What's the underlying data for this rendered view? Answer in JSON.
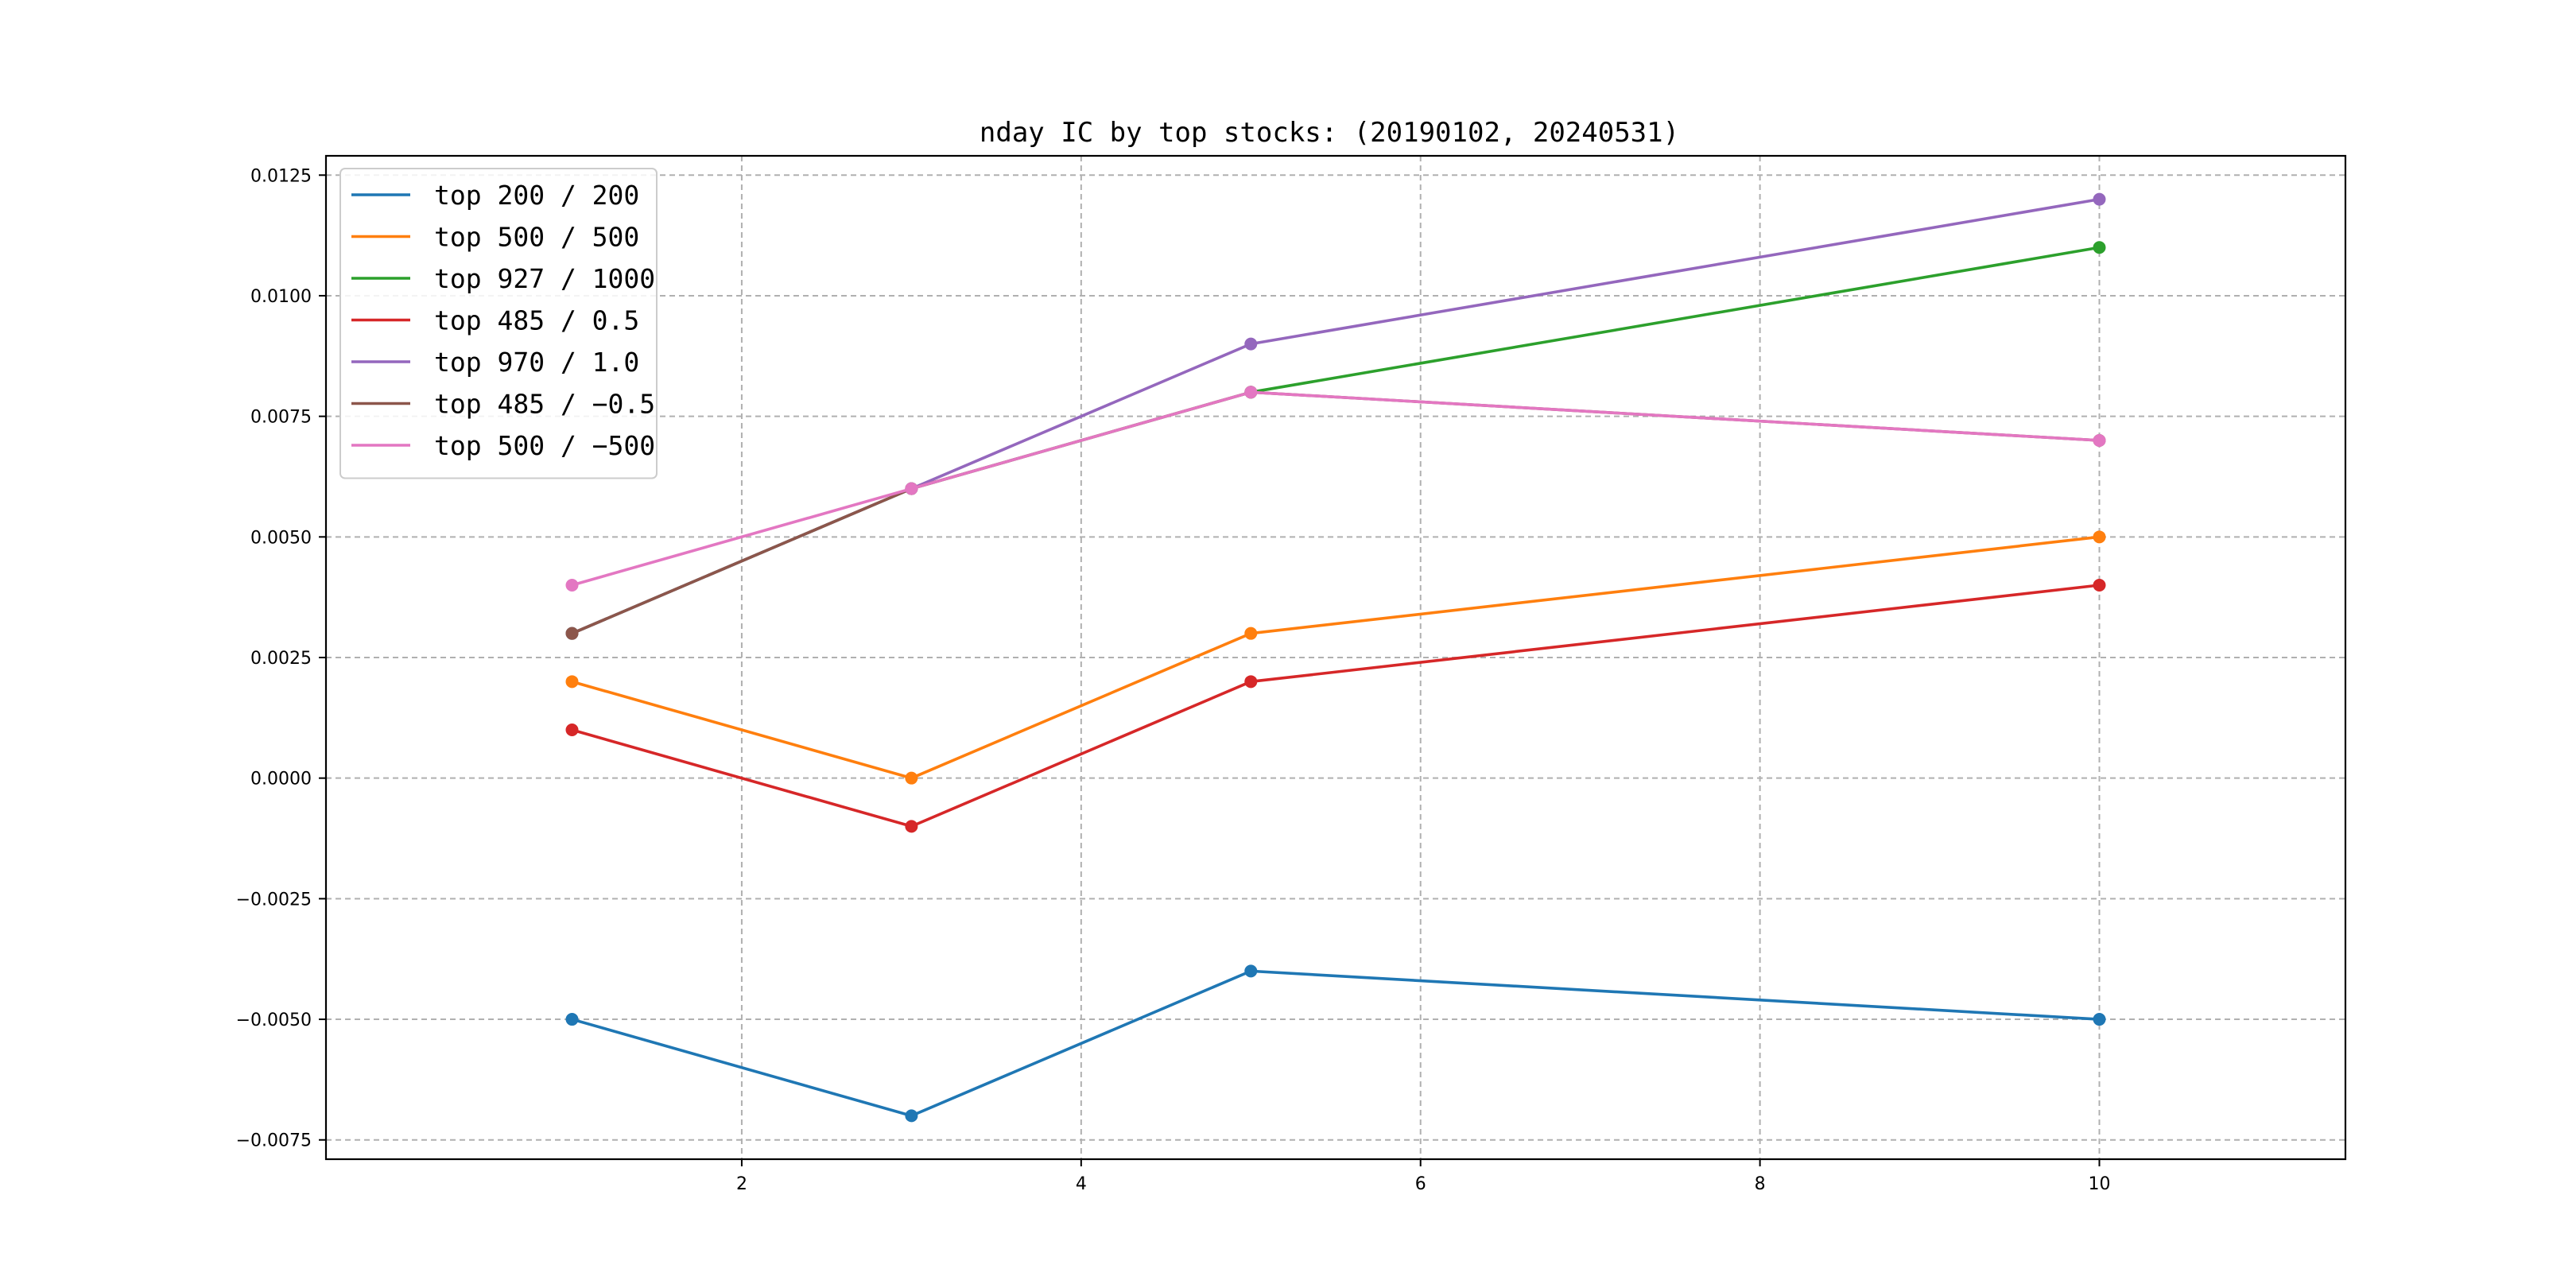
{
  "chart_data": {
    "type": "line",
    "title": "nday IC by top stocks: (20190102, 20240531)",
    "xlabel": "",
    "ylabel": "",
    "x": [
      1,
      3,
      5,
      10
    ],
    "xlim": [
      -0.45,
      11.45
    ],
    "ylim": [
      -0.0079,
      0.0129
    ],
    "xticks": [
      2,
      4,
      6,
      8,
      10
    ],
    "xtick_labels": [
      "2",
      "4",
      "6",
      "8",
      "10"
    ],
    "yticks": [
      -0.0075,
      -0.005,
      -0.0025,
      0.0,
      0.0025,
      0.005,
      0.0075,
      0.01,
      0.0125
    ],
    "ytick_labels": [
      "−0.0075",
      "−0.0050",
      "−0.0025",
      "0.0000",
      "0.0025",
      "0.0050",
      "0.0075",
      "0.0100",
      "0.0125"
    ],
    "grid": true,
    "legend_position": "upper-left",
    "series": [
      {
        "name": "top 200 / 200",
        "color": "#1f77b4",
        "values": [
          -0.005,
          -0.007,
          -0.004,
          -0.005
        ]
      },
      {
        "name": "top 500 / 500",
        "color": "#ff7f0e",
        "values": [
          0.002,
          0.0,
          0.003,
          0.005
        ]
      },
      {
        "name": "top 927 / 1000",
        "color": "#2ca02c",
        "values": [
          0.003,
          0.006,
          0.008,
          0.011
        ]
      },
      {
        "name": "top 485 / 0.5",
        "color": "#d62728",
        "values": [
          0.001,
          -0.001,
          0.002,
          0.004
        ]
      },
      {
        "name": "top 970 / 1.0",
        "color": "#9467bd",
        "values": [
          0.003,
          0.006,
          0.009,
          0.012
        ]
      },
      {
        "name": "top 485 / −0.5",
        "color": "#8c564b",
        "values": [
          0.003,
          0.006,
          0.008,
          0.007
        ]
      },
      {
        "name": "top 500 / −500",
        "color": "#e377c2",
        "values": [
          0.004,
          0.006,
          0.008,
          0.007
        ]
      }
    ]
  }
}
